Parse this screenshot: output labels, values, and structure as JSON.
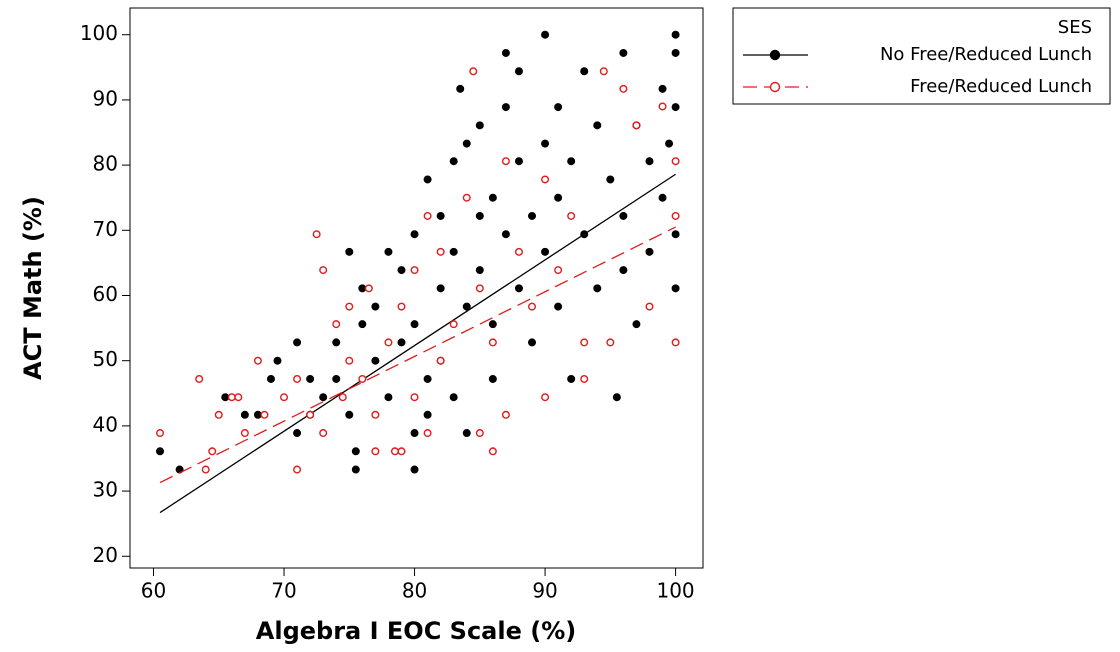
{
  "chart_data": {
    "type": "scatter",
    "x_label": "Algebra I EOC Scale (%)",
    "y_label": "ACT Math (%)",
    "xlim": [
      58.2,
      102.1
    ],
    "ylim": [
      18.2,
      104.1
    ],
    "xticks": [
      60,
      70,
      80,
      90,
      100
    ],
    "yticks": [
      20,
      30,
      40,
      50,
      60,
      70,
      80,
      90,
      100
    ],
    "legend_title": "SES",
    "legend_position": "outside-right-top",
    "series": [
      {
        "name": "No Free/Reduced Lunch",
        "color": "#000000",
        "marker": "filled",
        "dash": false,
        "x": [
          60.5,
          62,
          65.5,
          67,
          68,
          69,
          69.5,
          71,
          71,
          72,
          72,
          73,
          74,
          74,
          75,
          75,
          75.5,
          75.5,
          76,
          76,
          77,
          77,
          78,
          78,
          79,
          79,
          80,
          80,
          80,
          80,
          81,
          81,
          81,
          82,
          82,
          82,
          83,
          83,
          83,
          83.5,
          84,
          84,
          84,
          85,
          85,
          85,
          86,
          86,
          86,
          87,
          87,
          87,
          88,
          88,
          88,
          89,
          89,
          90,
          90,
          90,
          91,
          91,
          91,
          92,
          92,
          93,
          93,
          94,
          94,
          95,
          95.5,
          96,
          96,
          96,
          97,
          97,
          98,
          98,
          99,
          99,
          100,
          100,
          100,
          100,
          100,
          99.5
        ],
        "values": [
          36.1,
          33.3,
          44.4,
          41.7,
          41.7,
          47.2,
          50,
          52.8,
          38.9,
          41.7,
          47.2,
          44.4,
          52.8,
          47.2,
          66.7,
          41.7,
          36.1,
          33.3,
          55.6,
          61.1,
          58.3,
          50,
          66.7,
          44.4,
          63.9,
          52.8,
          33.3,
          38.9,
          69.4,
          55.6,
          77.8,
          47.2,
          41.7,
          72.2,
          61.1,
          50,
          80.6,
          66.7,
          44.4,
          91.7,
          83.3,
          58.3,
          38.9,
          86.1,
          72.2,
          63.9,
          75,
          55.6,
          47.2,
          97.2,
          88.9,
          69.4,
          94.4,
          80.6,
          61.1,
          72.2,
          52.8,
          100,
          83.3,
          66.7,
          88.9,
          75,
          58.3,
          80.6,
          47.2,
          94.4,
          69.4,
          86.1,
          61.1,
          77.8,
          44.4,
          97.2,
          72.2,
          63.9,
          86.1,
          55.6,
          80.6,
          66.7,
          75,
          91.7,
          100,
          97.2,
          88.9,
          69.4,
          61.1,
          83.3
        ],
        "fit": {
          "x": [
            60.5,
            100
          ],
          "y": [
            26.7,
            78.6
          ]
        }
      },
      {
        "name": "Free/Reduced Lunch",
        "color": "#e31a1c",
        "marker": "open",
        "dash": true,
        "x": [
          60.5,
          63.5,
          64,
          64.5,
          65,
          66,
          66.5,
          67,
          68,
          68.5,
          70,
          71,
          71,
          72,
          72.5,
          73,
          73,
          74,
          74.5,
          75,
          75,
          76,
          76.5,
          77,
          77,
          78,
          78.5,
          79,
          79,
          80,
          80,
          81,
          81,
          82,
          82,
          83,
          84,
          84.5,
          85,
          85,
          86,
          86,
          87,
          87,
          88,
          89,
          90,
          90,
          91,
          92,
          93,
          93,
          94.5,
          95,
          96,
          97,
          98,
          99,
          100,
          100,
          100
        ],
        "values": [
          38.9,
          47.2,
          33.3,
          36.1,
          41.7,
          44.4,
          44.4,
          38.9,
          50,
          41.7,
          44.4,
          33.3,
          47.2,
          41.7,
          69.4,
          63.9,
          38.9,
          55.6,
          44.4,
          58.3,
          50,
          47.2,
          61.1,
          36.1,
          41.7,
          52.8,
          36.1,
          36.1,
          58.3,
          63.9,
          44.4,
          72.2,
          38.9,
          66.7,
          50,
          55.6,
          75,
          94.4,
          38.9,
          61.1,
          36.1,
          52.8,
          80.6,
          41.7,
          66.7,
          58.3,
          77.8,
          44.4,
          63.9,
          72.2,
          47.2,
          52.8,
          94.4,
          52.8,
          91.7,
          86.1,
          58.3,
          89,
          52.8,
          80.6,
          72.2
        ],
        "fit": {
          "x": [
            60.5,
            100
          ],
          "y": [
            31.3,
            70.5
          ]
        }
      }
    ]
  }
}
